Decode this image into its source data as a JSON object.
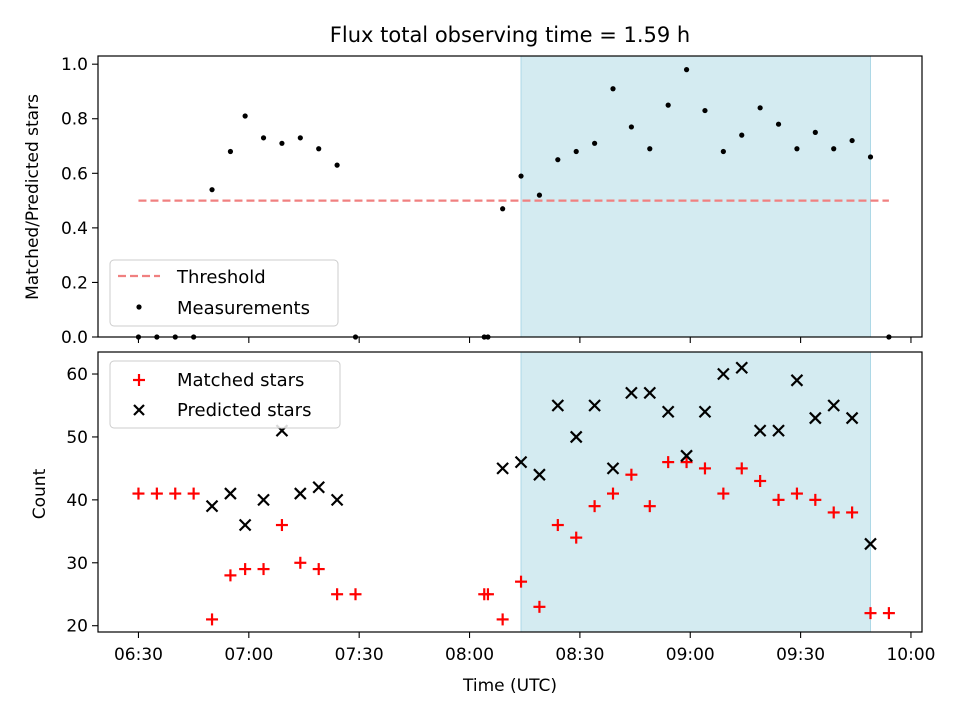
{
  "chart_data": [
    {
      "type": "scatter",
      "title": "Flux total observing time = 1.59 h",
      "xlabel": "",
      "ylabel": "Matched/Predicted stars",
      "xlim": [
        "06:19",
        "10:03"
      ],
      "ylim": [
        0,
        1.03
      ],
      "yticks": [
        "0.0",
        "0.2",
        "0.4",
        "0.6",
        "0.8",
        "1.0"
      ],
      "xticks": [
        "06:30",
        "07:00",
        "07:30",
        "08:00",
        "08:30",
        "09:00",
        "09:30",
        "10:00"
      ],
      "grid": false,
      "legend_position": "lower-left",
      "shaded_interval": [
        "08:14",
        "09:49"
      ],
      "threshold": {
        "name": "Threshold",
        "value": 0.5,
        "x_from": "06:30",
        "x_to": "09:54",
        "color": "#f08080"
      },
      "series": [
        {
          "name": "Measurements",
          "color": "#000000",
          "points": [
            [
              "06:30",
              0.0
            ],
            [
              "06:35",
              0.0
            ],
            [
              "06:40",
              0.0
            ],
            [
              "06:45",
              0.0
            ],
            [
              "06:50",
              0.54
            ],
            [
              "06:55",
              0.68
            ],
            [
              "06:59",
              0.81
            ],
            [
              "07:04",
              0.73
            ],
            [
              "07:09",
              0.71
            ],
            [
              "07:14",
              0.73
            ],
            [
              "07:19",
              0.69
            ],
            [
              "07:24",
              0.63
            ],
            [
              "07:29",
              0.0
            ],
            [
              "08:04",
              0.0
            ],
            [
              "08:05",
              0.0
            ],
            [
              "08:09",
              0.47
            ],
            [
              "08:14",
              0.59
            ],
            [
              "08:19",
              0.52
            ],
            [
              "08:24",
              0.65
            ],
            [
              "08:29",
              0.68
            ],
            [
              "08:34",
              0.71
            ],
            [
              "08:39",
              0.91
            ],
            [
              "08:44",
              0.77
            ],
            [
              "08:49",
              0.69
            ],
            [
              "08:54",
              0.85
            ],
            [
              "08:59",
              0.98
            ],
            [
              "09:04",
              0.83
            ],
            [
              "09:09",
              0.68
            ],
            [
              "09:14",
              0.74
            ],
            [
              "09:19",
              0.84
            ],
            [
              "09:24",
              0.78
            ],
            [
              "09:29",
              0.69
            ],
            [
              "09:34",
              0.75
            ],
            [
              "09:39",
              0.69
            ],
            [
              "09:44",
              0.72
            ],
            [
              "09:49",
              0.66
            ],
            [
              "09:54",
              0.0
            ]
          ]
        }
      ]
    },
    {
      "type": "scatter",
      "title": "",
      "xlabel": "Time (UTC)",
      "ylabel": "Count",
      "xlim": [
        "06:19",
        "10:03"
      ],
      "ylim": [
        19,
        63.5
      ],
      "yticks": [
        "20",
        "30",
        "40",
        "50",
        "60"
      ],
      "xticks": [
        "06:30",
        "07:00",
        "07:30",
        "08:00",
        "08:30",
        "09:00",
        "09:30",
        "10:00"
      ],
      "grid": false,
      "legend_position": "upper-left",
      "shaded_interval": [
        "08:14",
        "09:49"
      ],
      "series": [
        {
          "name": "Matched stars",
          "marker": "+",
          "color": "#ff0000",
          "points": [
            [
              "06:30",
              41
            ],
            [
              "06:35",
              41
            ],
            [
              "06:40",
              41
            ],
            [
              "06:45",
              41
            ],
            [
              "06:50",
              21
            ],
            [
              "06:55",
              28
            ],
            [
              "06:59",
              29
            ],
            [
              "07:04",
              29
            ],
            [
              "07:09",
              36
            ],
            [
              "07:14",
              30
            ],
            [
              "07:19",
              29
            ],
            [
              "07:24",
              25
            ],
            [
              "07:29",
              25
            ],
            [
              "08:04",
              25
            ],
            [
              "08:05",
              25
            ],
            [
              "08:09",
              21
            ],
            [
              "08:14",
              27
            ],
            [
              "08:19",
              23
            ],
            [
              "08:24",
              36
            ],
            [
              "08:29",
              34
            ],
            [
              "08:34",
              39
            ],
            [
              "08:39",
              41
            ],
            [
              "08:44",
              44
            ],
            [
              "08:49",
              39
            ],
            [
              "08:54",
              46
            ],
            [
              "08:59",
              46
            ],
            [
              "09:04",
              45
            ],
            [
              "09:09",
              41
            ],
            [
              "09:14",
              45
            ],
            [
              "09:19",
              43
            ],
            [
              "09:24",
              40
            ],
            [
              "09:29",
              41
            ],
            [
              "09:34",
              40
            ],
            [
              "09:39",
              38
            ],
            [
              "09:44",
              38
            ],
            [
              "09:49",
              22
            ],
            [
              "09:54",
              22
            ]
          ]
        },
        {
          "name": "Predicted stars",
          "marker": "x",
          "color": "#000000",
          "points": [
            [
              "06:50",
              39
            ],
            [
              "06:55",
              41
            ],
            [
              "06:59",
              36
            ],
            [
              "07:04",
              40
            ],
            [
              "07:09",
              51
            ],
            [
              "07:14",
              41
            ],
            [
              "07:19",
              42
            ],
            [
              "07:24",
              40
            ],
            [
              "08:09",
              45
            ],
            [
              "08:14",
              46
            ],
            [
              "08:19",
              44
            ],
            [
              "08:24",
              55
            ],
            [
              "08:29",
              50
            ],
            [
              "08:34",
              55
            ],
            [
              "08:39",
              45
            ],
            [
              "08:44",
              57
            ],
            [
              "08:49",
              57
            ],
            [
              "08:54",
              54
            ],
            [
              "08:59",
              47
            ],
            [
              "09:04",
              54
            ],
            [
              "09:09",
              60
            ],
            [
              "09:14",
              61
            ],
            [
              "09:19",
              51
            ],
            [
              "09:24",
              51
            ],
            [
              "09:29",
              59
            ],
            [
              "09:34",
              53
            ],
            [
              "09:39",
              55
            ],
            [
              "09:44",
              53
            ],
            [
              "09:49",
              33
            ]
          ]
        }
      ]
    }
  ],
  "colors": {
    "shade": "#d4ebf1",
    "shade_edge": "#add8e6",
    "axes": "#000000"
  }
}
